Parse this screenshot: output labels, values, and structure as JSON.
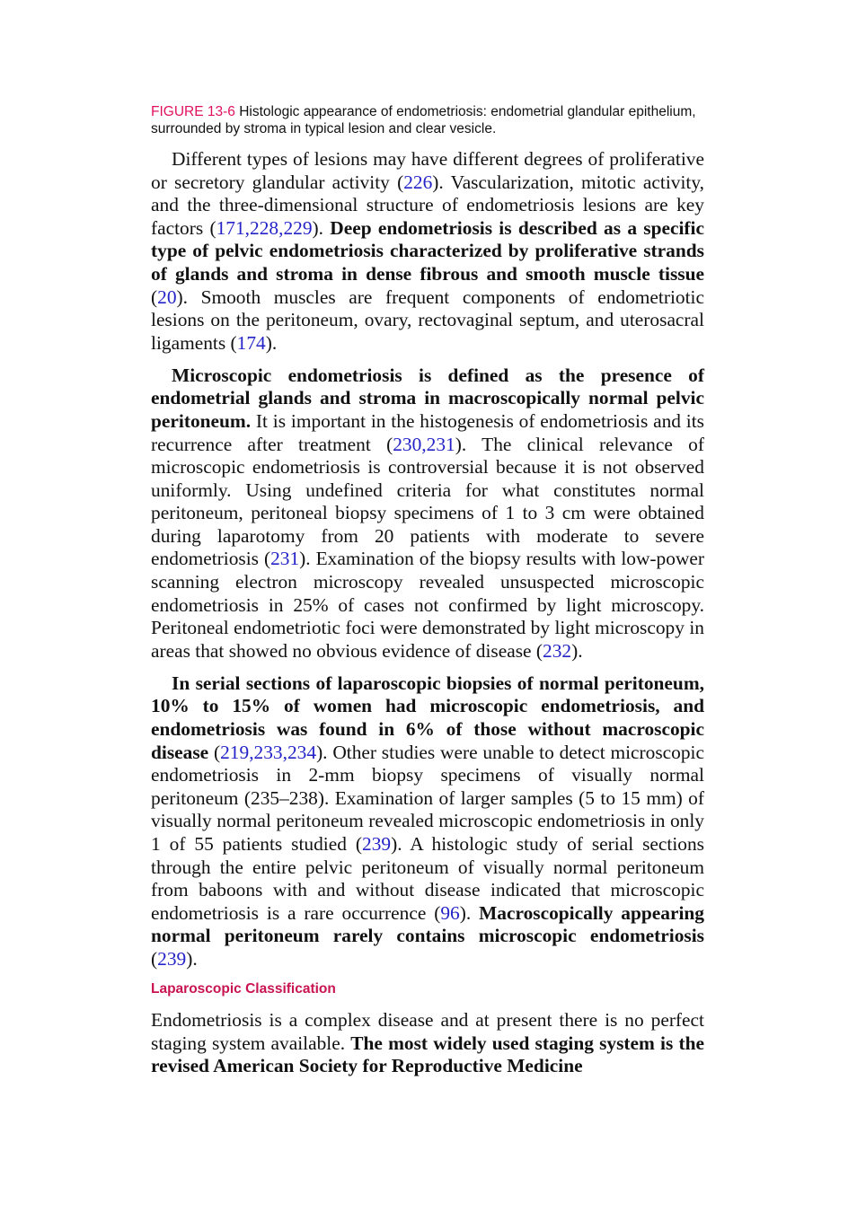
{
  "figure": {
    "label": "FIGURE 13-6",
    "text": " Histologic appearance of endometriosis: endometrial glandular epithelium, surrounded by stroma in typical lesion and clear vesicle."
  },
  "paragraphs": [
    {
      "indent": true,
      "segments": [
        {
          "t": "Different types of lesions may have different degrees of proliferative or secretory glandular activity ("
        },
        {
          "t": "226",
          "s": "ref"
        },
        {
          "t": "). Vascularization, mitotic activity, and the three-dimensional structure of endometriosis lesions are key factors ("
        },
        {
          "t": "171,228,229",
          "s": "ref"
        },
        {
          "t": "). "
        },
        {
          "t": "Deep endometriosis is described as a specific type of pelvic endometriosis characterized by proliferative strands of glands and stroma in dense fibrous and smooth muscle tissue",
          "s": "bold"
        },
        {
          "t": " ("
        },
        {
          "t": "20",
          "s": "ref"
        },
        {
          "t": "). Smooth muscles are frequent components of endometriotic lesions on the peritoneum, ovary, rectovaginal septum, and uterosacral ligaments ("
        },
        {
          "t": "174",
          "s": "ref"
        },
        {
          "t": ")."
        }
      ]
    },
    {
      "indent": true,
      "segments": [
        {
          "t": "Microscopic endometriosis is defined as the presence of endometrial glands and stroma in macroscopically normal pelvic peritoneum.",
          "s": "bold"
        },
        {
          "t": " It is important in the histogenesis of endometriosis and its recurrence after treatment ("
        },
        {
          "t": "230,231",
          "s": "ref"
        },
        {
          "t": "). The clinical relevance of microscopic endometriosis is controversial because it is not observed uniformly. Using undefined criteria for what constitutes normal peritoneum, peritoneal biopsy specimens of 1 to 3 cm were obtained during laparotomy from 20 patients with moderate to severe endometriosis ("
        },
        {
          "t": "231",
          "s": "ref"
        },
        {
          "t": "). Examination of the biopsy results with low-power scanning electron microscopy revealed unsuspected microscopic endometriosis in 25% of cases not confirmed by light microscopy. Peritoneal endometriotic foci were demonstrated by light microscopy in areas that showed no obvious evidence of disease ("
        },
        {
          "t": "232",
          "s": "ref"
        },
        {
          "t": ")."
        }
      ]
    },
    {
      "indent": true,
      "segments": [
        {
          "t": "In serial sections of laparoscopic biopsies of normal peritoneum, 10% to 15% of women had microscopic endometriosis, and endometriosis was found in 6% of those without macroscopic disease",
          "s": "bold"
        },
        {
          "t": " ("
        },
        {
          "t": "219,233,234",
          "s": "ref"
        },
        {
          "t": "). Other studies were unable to detect microscopic endometriosis in 2-mm biopsy specimens of visually normal peritoneum (235–238). Examination of larger samples (5 to 15 mm) of visually normal peritoneum revealed microscopic endometriosis in only 1 of 55 patients studied ("
        },
        {
          "t": "239",
          "s": "ref"
        },
        {
          "t": "). A histologic study of serial sections through the entire pelvic peritoneum of visually normal peritoneum from baboons with and without disease indicated that microscopic endometriosis is a rare occurrence ("
        },
        {
          "t": "96",
          "s": "ref"
        },
        {
          "t": "). "
        },
        {
          "t": "Macroscopically appearing normal peritoneum rarely contains microscopic endometriosis",
          "s": "bold"
        },
        {
          "t": " ("
        },
        {
          "t": "239",
          "s": "ref"
        },
        {
          "t": ")."
        }
      ]
    }
  ],
  "section_heading": "Laparoscopic Classification",
  "last_paragraph": {
    "indent": false,
    "segments": [
      {
        "t": "Endometriosis is a complex disease and at present there is no perfect staging system available. "
      },
      {
        "t": "The most widely used staging system is the revised American Society for Reproductive Medicine",
        "s": "bold"
      }
    ]
  },
  "colors": {
    "figure_label": "#e0115f",
    "heading": "#c81450",
    "reference_link": "#2323c8",
    "text": "#111111"
  }
}
